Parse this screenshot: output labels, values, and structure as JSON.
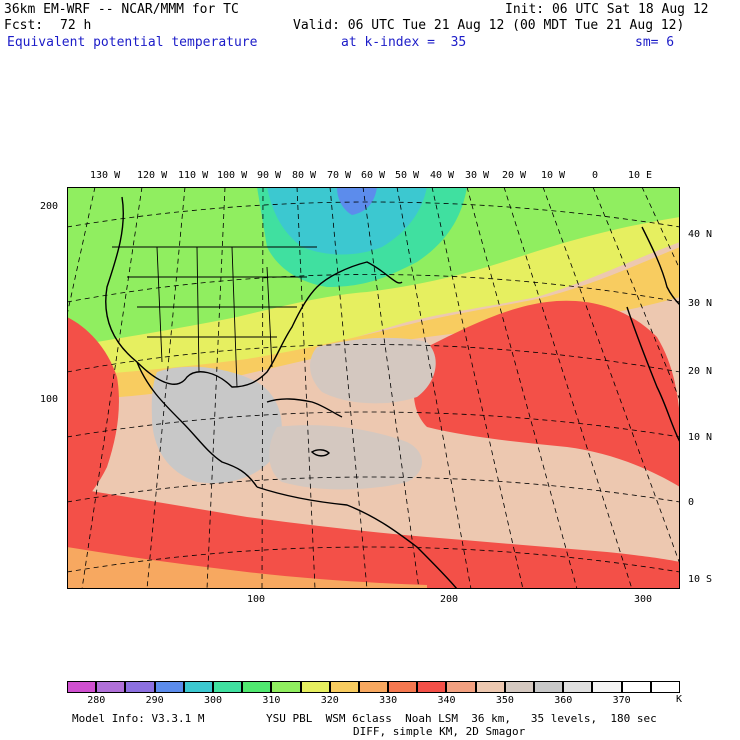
{
  "header": {
    "model": "36km EM-WRF -- NCAR/MMM for TC",
    "init": "Init: 06 UTC Sat 18 Aug 12",
    "fcst_label": "Fcst:",
    "fcst_value": "72 h",
    "valid": "Valid: 06 UTC Tue 21 Aug 12 (00 MDT Tue 21 Aug 12)",
    "field": "Equivalent potential temperature",
    "level": "at k-index =  35",
    "smoothing": "sm= 6"
  },
  "map": {
    "top_longitudes": [
      "130 W",
      "120 W",
      "110 W",
      "100 W",
      "90 W",
      "80 W",
      "70 W",
      "60 W",
      "50 W",
      "40 W",
      "30 W",
      "20 W",
      "10 W",
      "0",
      "10 E"
    ],
    "right_latitudes": [
      "40 N",
      "30 N",
      "20 N",
      "10 N",
      "0",
      "10 S"
    ],
    "left_grid": [
      "200",
      "100"
    ],
    "bottom_grid": [
      "100",
      "200",
      "300"
    ]
  },
  "legend": {
    "colors": [
      "#d050d0",
      "#b070d8",
      "#8c70e0",
      "#5c8cec",
      "#3cc8d0",
      "#40e0a0",
      "#50e870",
      "#90ee60",
      "#e6ef60",
      "#f8cc60",
      "#f7a860",
      "#f57850",
      "#f35048",
      "#f2a080",
      "#edc8b0",
      "#d4c8c0",
      "#c8c8c8",
      "#e0e0e0",
      "#f4f4f4",
      "#ffffff",
      "#ffffff"
    ],
    "labels": [
      "280",
      "290",
      "300",
      "310",
      "320",
      "330",
      "340",
      "350",
      "360",
      "370"
    ],
    "unit": "K"
  },
  "footer": {
    "model_info": "Model Info: V3.3.1 M",
    "physics": "YSU PBL  WSM 6class  Noah LSM  36 km,   35 levels,  180 sec",
    "diff": "DIFF, simple KM, 2D Smagor"
  }
}
